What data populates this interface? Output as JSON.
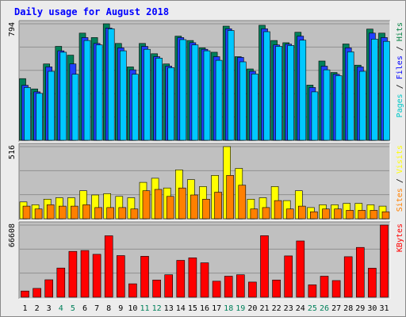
{
  "chart_data": {
    "title": "Daily usage for August 2018",
    "days": [
      "1",
      "2",
      "3",
      "4",
      "5",
      "6",
      "7",
      "8",
      "9",
      "10",
      "11",
      "12",
      "13",
      "14",
      "15",
      "16",
      "17",
      "18",
      "19",
      "20",
      "21",
      "22",
      "23",
      "24",
      "25",
      "26",
      "27",
      "28",
      "29",
      "30",
      "31"
    ],
    "weekend_days": [
      4,
      5,
      11,
      12,
      18,
      19,
      25,
      26
    ],
    "panels": [
      {
        "type": "bar",
        "max_label": "794",
        "max": 794,
        "legend": [
          {
            "text": "Pages",
            "color": "#00c8c8"
          },
          {
            "text": " / ",
            "color": "#000000"
          },
          {
            "text": "Files",
            "color": "#0000ff"
          },
          {
            "text": " / ",
            "color": "#000000"
          },
          {
            "text": "Hits",
            "color": "#008040"
          }
        ],
        "series": [
          {
            "name": "Hits",
            "color": "#00805a",
            "values": [
              420,
              350,
              520,
              640,
              580,
              730,
              700,
              794,
              660,
              500,
              660,
              590,
              520,
              710,
              680,
              630,
              600,
              778,
              570,
              486,
              784,
              680,
              665,
              736,
              376,
              540,
              462,
              656,
              512,
              758,
              730
            ]
          },
          {
            "name": "Files",
            "color": "#2040ff",
            "values": [
              375,
              330,
              500,
              610,
              520,
              700,
              660,
              765,
              630,
              480,
              640,
              570,
              505,
              700,
              665,
              620,
              570,
              760,
              565,
              470,
              760,
              650,
              655,
              710,
              360,
              505,
              450,
              630,
              500,
              730,
              700
            ]
          },
          {
            "name": "Pages",
            "color": "#00c8ff",
            "values": [
              360,
              320,
              470,
              600,
              450,
              680,
              650,
              760,
              610,
              450,
              620,
              560,
              495,
              686,
              650,
              610,
              545,
              748,
              535,
              452,
              740,
              640,
              646,
              682,
              330,
              480,
              440,
              603,
              470,
              690,
              674
            ]
          }
        ]
      },
      {
        "type": "bar",
        "max_label": "516",
        "max": 516,
        "legend": [
          {
            "text": "Sites",
            "color": "#ff8000"
          },
          {
            "text": " / ",
            "color": "#000000"
          },
          {
            "text": "Visits",
            "color": "#ffff00"
          }
        ],
        "series": [
          {
            "name": "Visits",
            "color": "#ffff00",
            "values": [
              120,
              100,
              140,
              150,
              150,
              200,
              170,
              180,
              160,
              150,
              260,
              290,
              220,
              350,
              280,
              230,
              310,
              516,
              360,
              140,
              150,
              230,
              130,
              200,
              80,
              100,
              100,
              110,
              110,
              100,
              90
            ]
          },
          {
            "name": "Sites",
            "color": "#ff8000",
            "values": [
              90,
              70,
              100,
              90,
              90,
              100,
              80,
              80,
              80,
              70,
              200,
              210,
              160,
              220,
              170,
              140,
              190,
              310,
              240,
              70,
              80,
              130,
              70,
              90,
              50,
              70,
              70,
              60,
              60,
              60,
              50
            ]
          }
        ]
      },
      {
        "type": "bar",
        "max_label": "66608",
        "max": 66608,
        "legend": [
          {
            "text": "KBytes",
            "color": "#ff0000"
          }
        ],
        "series": [
          {
            "name": "KBytes",
            "color": "#ff0000",
            "values": [
              5700,
              8100,
              16100,
              26900,
              42300,
              43100,
              39600,
              56700,
              38400,
              12400,
              37800,
              15900,
              20700,
              34000,
              36400,
              31800,
              14800,
              19400,
              20700,
              14000,
              56800,
              15900,
              38100,
              52000,
              11400,
              19400,
              15400,
              37400,
              46000,
              26800,
              66608
            ]
          }
        ]
      }
    ]
  }
}
